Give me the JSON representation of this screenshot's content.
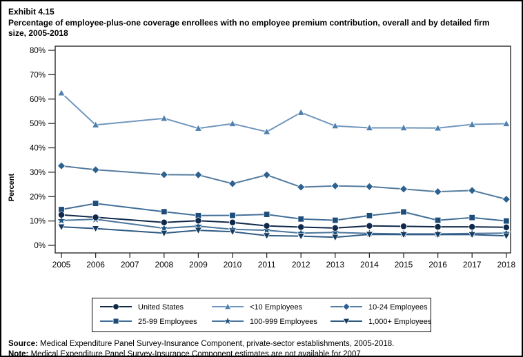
{
  "header": {
    "exhibit": "Exhibit 4.15",
    "title": "Percentage of employee-plus-one coverage enrollees with no employee premium contribution, overall and by detailed firm size, 2005-2018"
  },
  "chart_data": {
    "type": "line",
    "ylabel": "Percent",
    "ylim": [
      0,
      80
    ],
    "ytick_step": 10,
    "ytick_suffix": "%",
    "grid": false,
    "legend_position": "bottom",
    "axis_years": [
      2005,
      2006,
      2007,
      2008,
      2009,
      2010,
      2011,
      2012,
      2013,
      2014,
      2015,
      2016,
      2017,
      2018
    ],
    "data_years": [
      2005,
      2006,
      2008,
      2009,
      2010,
      2011,
      2012,
      2013,
      2014,
      2015,
      2016,
      2017,
      2018
    ],
    "missing_year_note": "2007",
    "series": [
      {
        "name": "United States",
        "marker": "circle",
        "color": "#10294a",
        "line_color": "#10294a",
        "values": [
          12.5,
          11.5,
          9.4,
          10.1,
          9.4,
          8.0,
          7.5,
          7.1,
          8.0,
          7.8,
          7.6,
          7.6,
          7.4
        ]
      },
      {
        "name": "<10 Employees",
        "marker": "triangle-up",
        "color": "#4e7fae",
        "line_color": "#7196bd",
        "values": [
          62.5,
          49.4,
          52.1,
          48.0,
          49.9,
          46.6,
          54.5,
          49.0,
          48.2,
          48.2,
          48.1,
          49.6,
          49.9
        ]
      },
      {
        "name": "10-24 Employees",
        "marker": "diamond",
        "color": "#2d618f",
        "line_color": "#557c9f",
        "values": [
          32.6,
          31.0,
          29.0,
          28.9,
          25.3,
          28.9,
          23.9,
          24.4,
          24.1,
          23.1,
          22.0,
          22.5,
          18.9
        ]
      },
      {
        "name": "25-99 Employees",
        "marker": "square",
        "color": "#1e4d7b",
        "line_color": "#426f97",
        "values": [
          14.7,
          17.2,
          13.8,
          12.2,
          12.3,
          12.7,
          10.8,
          10.3,
          12.2,
          13.7,
          10.3,
          11.4,
          10.0
        ]
      },
      {
        "name": "100-999 Employees",
        "marker": "star",
        "color": "#1f5480",
        "line_color": "#4a759d",
        "values": [
          10.2,
          10.7,
          7.0,
          7.9,
          6.6,
          6.2,
          5.0,
          5.3,
          4.9,
          4.7,
          4.7,
          4.9,
          5.0
        ]
      },
      {
        "name": "1,000+ Employees",
        "marker": "triangle-down",
        "color": "#133a60",
        "line_color": "#2e5a84",
        "values": [
          7.6,
          6.9,
          5.0,
          6.2,
          5.6,
          4.0,
          3.8,
          3.3,
          4.5,
          4.4,
          4.4,
          4.4,
          3.9
        ]
      }
    ]
  },
  "footer": {
    "source_label": "Source:",
    "source_text": " Medical Expenditure Panel Survey-Insurance Component, private-sector establishments, 2005-2018.",
    "note_label": "Note:",
    "note_text": " Medical Expenditure Panel Survey-Insurance Component estimates are not available for 2007."
  }
}
